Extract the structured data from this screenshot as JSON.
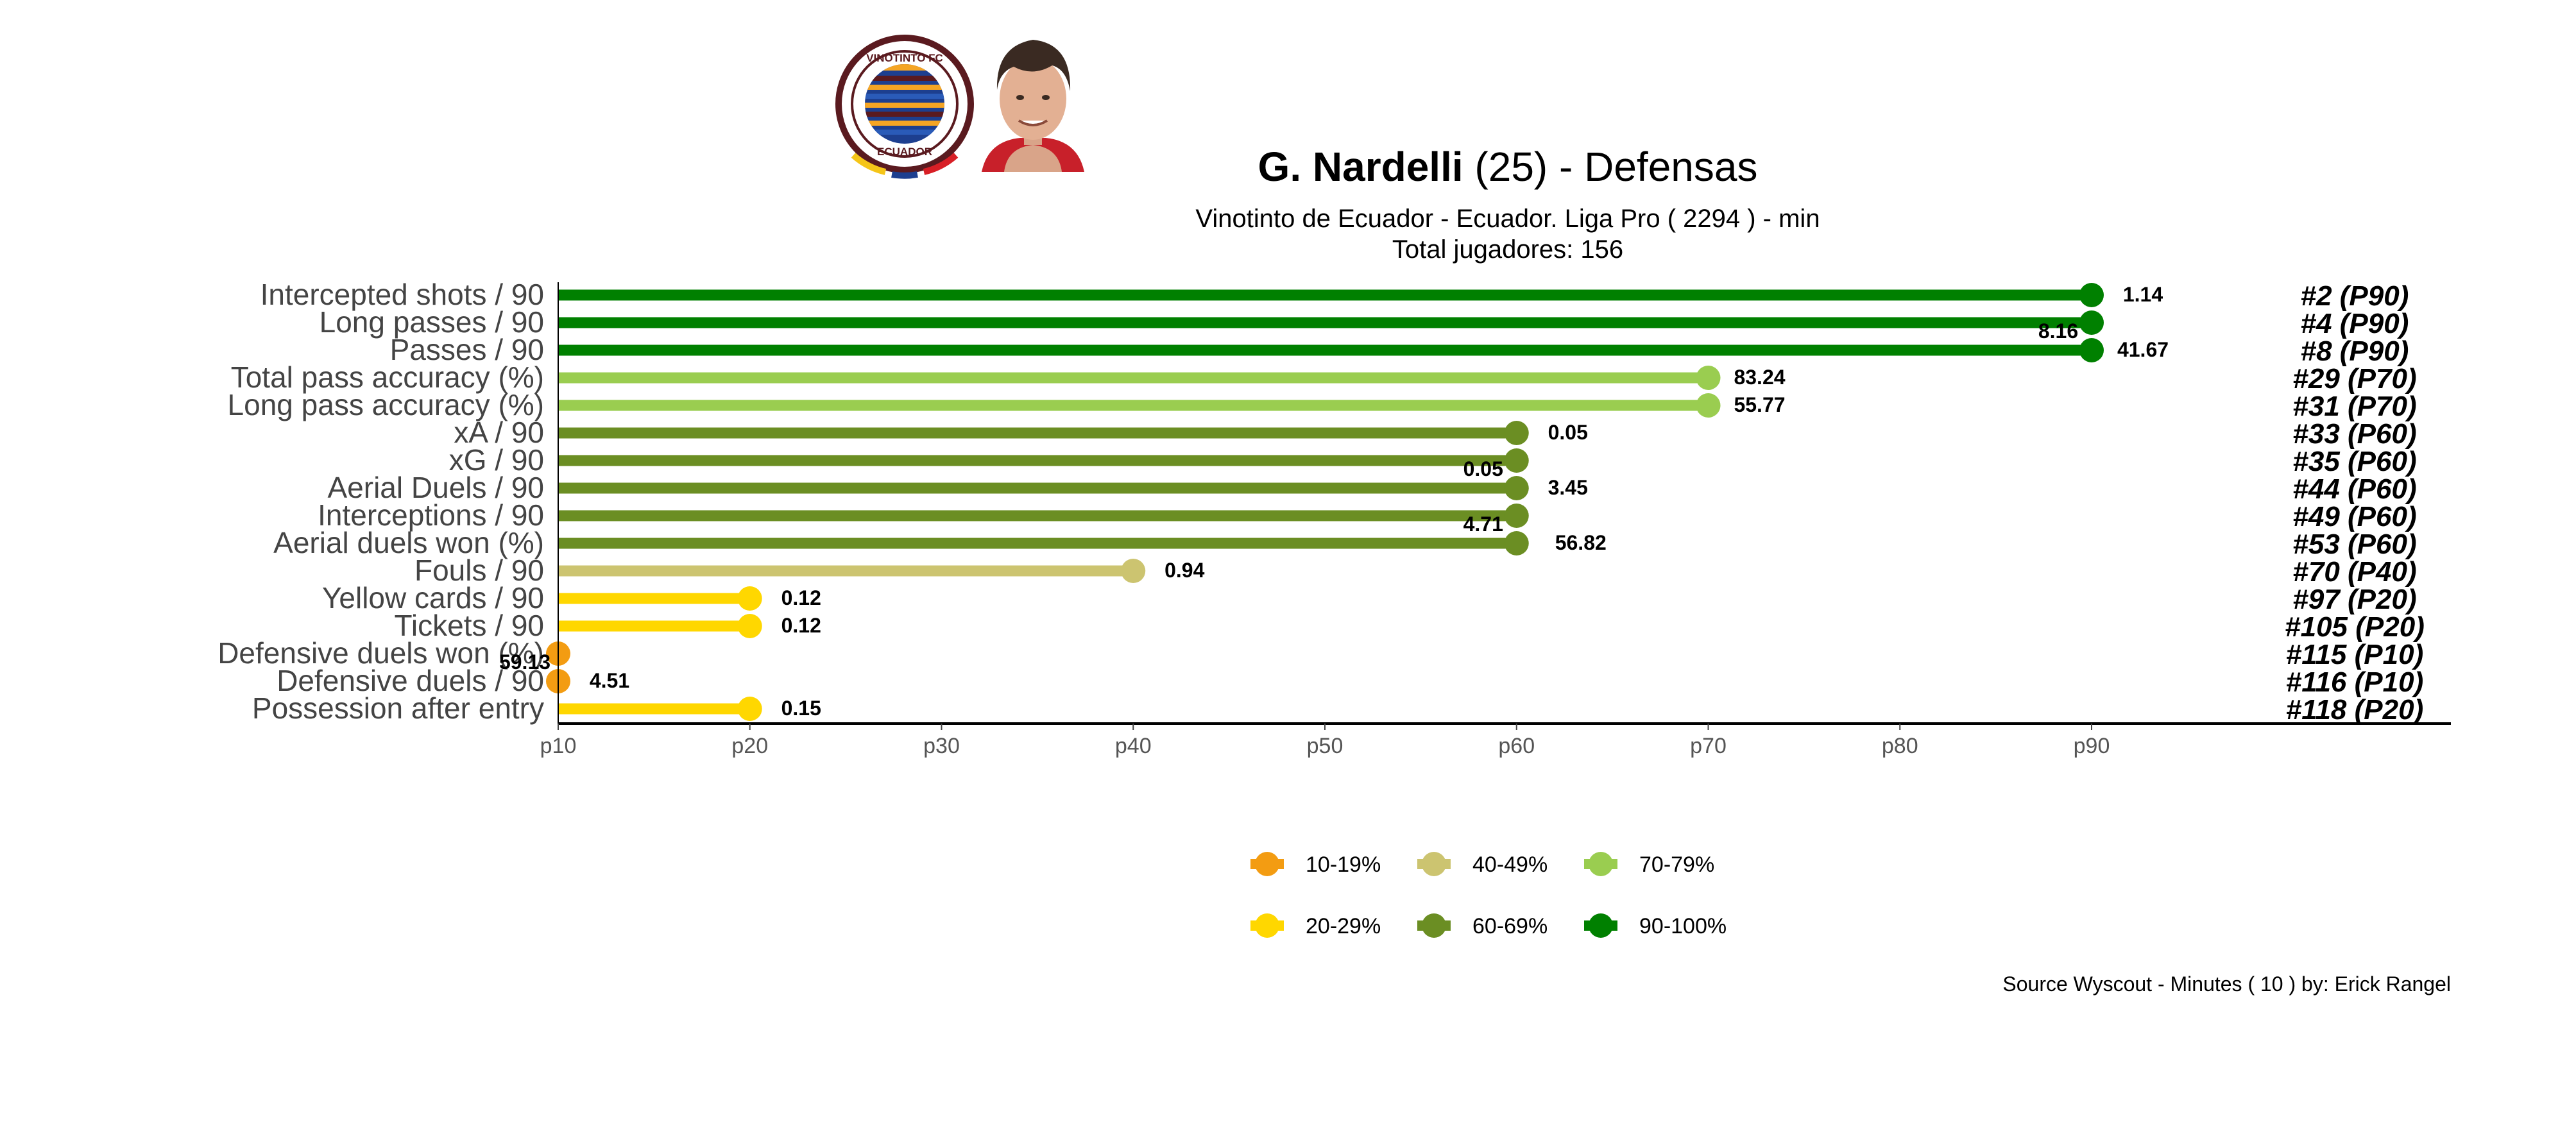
{
  "header": {
    "player_name": "G. Nardelli",
    "age_text": "(25) -",
    "position": "Defensas",
    "subtitle": "Vinotinto de Ecuador  -  Ecuador. Liga Pro  ( 2294 ) - min",
    "total_players": "Total jugadores:  156",
    "club_logo": {
      "icon": "club-crest-icon",
      "ring_text_top": "VINOTINTO FC",
      "ring_text_bottom": "ECUADOR",
      "colors": [
        "#5a1a1f",
        "#f5c518",
        "#1d3f8f",
        "#d81f26"
      ]
    },
    "player_photo": {
      "icon": "player-photo-icon"
    }
  },
  "footer": {
    "source": "Source Wyscout - Minutes ( 10 ) by: Erick Rangel"
  },
  "chart_data": {
    "type": "lollipop",
    "x_axis": {
      "ticks": [
        "p10",
        "p20",
        "p30",
        "p40",
        "p50",
        "p60",
        "p70",
        "p80",
        "p90"
      ],
      "range": [
        10,
        90
      ]
    },
    "rows": [
      {
        "metric": "Intercepted shots / 90",
        "percentile": 90,
        "value": "1.14",
        "rank": "#2 (P90)",
        "band": "90-100%"
      },
      {
        "metric": "Long passes / 90",
        "percentile": 90,
        "value": "8.16",
        "rank": "#4 (P90)",
        "band": "90-100%"
      },
      {
        "metric": "Passes / 90",
        "percentile": 90,
        "value": "41.67",
        "rank": "#8 (P90)",
        "band": "90-100%"
      },
      {
        "metric": "Total pass accuracy (%)",
        "percentile": 70,
        "value": "83.24",
        "rank": "#29 (P70)",
        "band": "70-79%"
      },
      {
        "metric": "Long pass accuracy (%)",
        "percentile": 70,
        "value": "55.77",
        "rank": "#31 (P70)",
        "band": "70-79%"
      },
      {
        "metric": "xA / 90",
        "percentile": 60,
        "value": "0.05",
        "rank": "#33 (P60)",
        "band": "60-69%"
      },
      {
        "metric": "xG / 90",
        "percentile": 60,
        "value": "0.05",
        "rank": "#35 (P60)",
        "band": "60-69%"
      },
      {
        "metric": "Aerial Duels / 90",
        "percentile": 60,
        "value": "3.45",
        "rank": "#44 (P60)",
        "band": "60-69%"
      },
      {
        "metric": "Interceptions / 90",
        "percentile": 60,
        "value": "4.71",
        "rank": "#49 (P60)",
        "band": "60-69%"
      },
      {
        "metric": "Aerial duels won (%)",
        "percentile": 60,
        "value": "56.82",
        "rank": "#53 (P60)",
        "band": "60-69%"
      },
      {
        "metric": "Fouls / 90",
        "percentile": 40,
        "value": "0.94",
        "rank": "#70 (P40)",
        "band": "40-49%"
      },
      {
        "metric": "Yellow cards / 90",
        "percentile": 20,
        "value": "0.12",
        "rank": "#97 (P20)",
        "band": "20-29%"
      },
      {
        "metric": "Tickets / 90",
        "percentile": 20,
        "value": "0.12",
        "rank": "#105 (P20)",
        "band": "20-29%"
      },
      {
        "metric": "Defensive duels won (%)",
        "percentile": 10,
        "value": "59.13",
        "rank": "#115 (P10)",
        "band": "10-19%"
      },
      {
        "metric": "Defensive duels / 90",
        "percentile": 10,
        "value": "4.51",
        "rank": "#116 (P10)",
        "band": "10-19%"
      },
      {
        "metric": "Possession after entry",
        "percentile": 20,
        "value": "0.15",
        "rank": "#118 (P20)",
        "band": "20-29%"
      }
    ],
    "legend": [
      {
        "label": "10-19%",
        "color": "#F39C12"
      },
      {
        "label": "20-29%",
        "color": "#FFD700"
      },
      {
        "label": "40-49%",
        "color": "#CCC470"
      },
      {
        "label": "60-69%",
        "color": "#6B8E23"
      },
      {
        "label": "70-79%",
        "color": "#9ACD50"
      },
      {
        "label": "90-100%",
        "color": "#008000"
      }
    ],
    "legend_position": "bottom"
  }
}
